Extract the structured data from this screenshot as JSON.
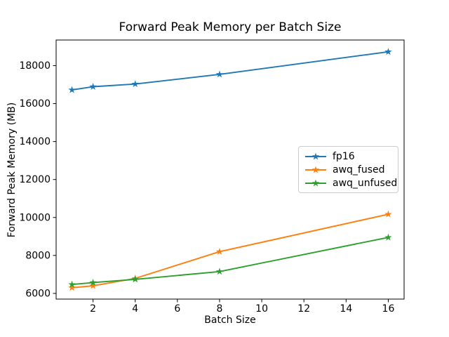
{
  "chart_data": {
    "type": "line",
    "title": "Forward Peak Memory per Batch Size",
    "xlabel": "Batch Size",
    "ylabel": "Forward Peak Memory (MB)",
    "x": [
      1,
      2,
      4,
      8,
      16
    ],
    "series": [
      {
        "name": "fp16",
        "color": "#1f77b4",
        "values": [
          16720,
          16890,
          17030,
          17540,
          18730
        ]
      },
      {
        "name": "awq_fused",
        "color": "#ff7f0e",
        "values": [
          6300,
          6400,
          6790,
          8200,
          10170
        ]
      },
      {
        "name": "awq_unfused",
        "color": "#2ca02c",
        "values": [
          6470,
          6570,
          6740,
          7150,
          8950
        ]
      }
    ],
    "xticks": [
      2,
      4,
      6,
      8,
      10,
      12,
      14,
      16
    ],
    "yticks": [
      6000,
      8000,
      10000,
      12000,
      14000,
      16000,
      18000
    ],
    "xlim": [
      0.25,
      16.75
    ],
    "ylim": [
      5700,
      19350
    ],
    "marker": "star",
    "grid": false,
    "legend_position": "center-right",
    "axis_color": "#000000",
    "background_color": "#ffffff"
  }
}
